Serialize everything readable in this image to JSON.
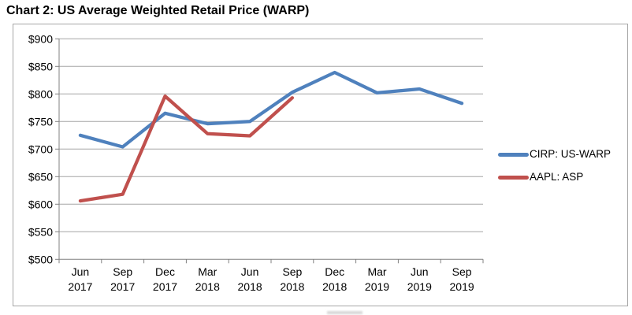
{
  "title": "Chart 2: US Average Weighted Retail Price (WARP)",
  "colors": {
    "series_blue": "#4F81BD",
    "series_red": "#C0504D",
    "gridline": "#A6A6A6",
    "axis": "#808080",
    "box_border": "#A6A6A6",
    "text": "#000000",
    "background": "#FFFFFF"
  },
  "chart_data": {
    "type": "line",
    "title": "Chart 2: US Average Weighted Retail Price (WARP)",
    "categories": [
      "Jun 2017",
      "Sep 2017",
      "Dec 2017",
      "Mar 2018",
      "Jun 2018",
      "Sep 2018",
      "Dec 2018",
      "Mar 2019",
      "Jun 2019",
      "Sep 2019"
    ],
    "series": [
      {
        "name": "CIRP: US-WARP",
        "color": "#4F81BD",
        "values": [
          725,
          704,
          765,
          746,
          750,
          803,
          839,
          802,
          809,
          783
        ]
      },
      {
        "name": "AAPL: ASP",
        "color": "#C0504D",
        "values": [
          606,
          618,
          796,
          728,
          724,
          793
        ]
      }
    ],
    "xlabel": "",
    "ylabel": "",
    "ylim": [
      500,
      900
    ],
    "ytick_step": 50,
    "ytick_prefix": "$",
    "ytick_labels": [
      "$500",
      "$550",
      "$600",
      "$650",
      "$700",
      "$750",
      "$800",
      "$850",
      "$900"
    ],
    "grid": true,
    "legend_position": "right-middle",
    "legend_entries": [
      "CIRP: US-WARP",
      "AAPL: ASP"
    ]
  }
}
